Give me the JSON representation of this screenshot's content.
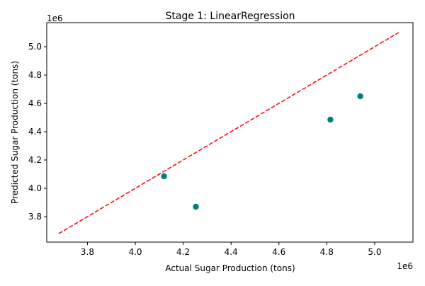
{
  "chart_data": {
    "type": "scatter",
    "title": "Stage 1: LinearRegression",
    "xlabel": "Actual Sugar Production (tons)",
    "ylabel": "Predicted Sugar Production (tons)",
    "x_offset_text": "1e6",
    "y_offset_text": "1e6",
    "xlim": [
      3.63,
      5.16
    ],
    "ylim": [
      3.62,
      5.17
    ],
    "xticks": [
      "3.8",
      "4.0",
      "4.2",
      "4.4",
      "4.6",
      "4.8",
      "5.0"
    ],
    "xtick_values": [
      3.8,
      4.0,
      4.2,
      4.4,
      4.6,
      4.8,
      5.0
    ],
    "yticks": [
      "3.8",
      "4.0",
      "4.2",
      "4.4",
      "4.6",
      "4.8",
      "5.0"
    ],
    "ytick_values": [
      3.8,
      4.0,
      4.2,
      4.4,
      4.6,
      4.8,
      5.0
    ],
    "scale_factor": 1000000,
    "points": [
      {
        "x": 4.12,
        "y": 4.085
      },
      {
        "x": 4.253,
        "y": 3.87
      },
      {
        "x": 4.815,
        "y": 4.485
      },
      {
        "x": 4.94,
        "y": 4.65
      }
    ],
    "reference_line": {
      "from": [
        3.68,
        3.68
      ],
      "to": [
        5.1,
        5.1
      ],
      "style": "dashed"
    },
    "grid": false,
    "colors": {
      "points": "#008080",
      "reference_line": "#ff0000",
      "axes": "#000000"
    }
  }
}
